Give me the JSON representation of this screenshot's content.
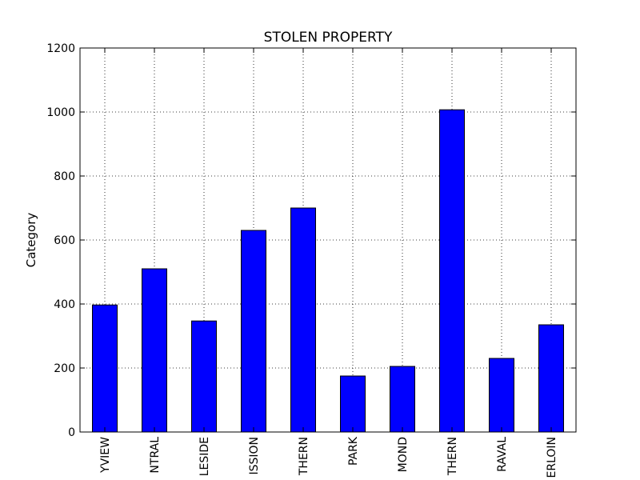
{
  "chart_data": {
    "type": "bar",
    "title": "STOLEN PROPERTY",
    "xlabel": "",
    "ylabel": "Category",
    "ylim": [
      0,
      1200
    ],
    "yticks": [
      0,
      200,
      400,
      600,
      800,
      1000,
      1200
    ],
    "categories": [
      "YVIEW",
      "NTRAL",
      "LESIDE",
      "ISSION",
      "THERN",
      "PARK",
      "MOND",
      "THERN",
      "RAVAL",
      "ERLOIN"
    ],
    "values": [
      397,
      510,
      347,
      630,
      700,
      175,
      205,
      1007,
      230,
      335
    ],
    "grid": true,
    "legend": "none",
    "bar_color": "#0000ff",
    "edge_color": "#000000"
  }
}
